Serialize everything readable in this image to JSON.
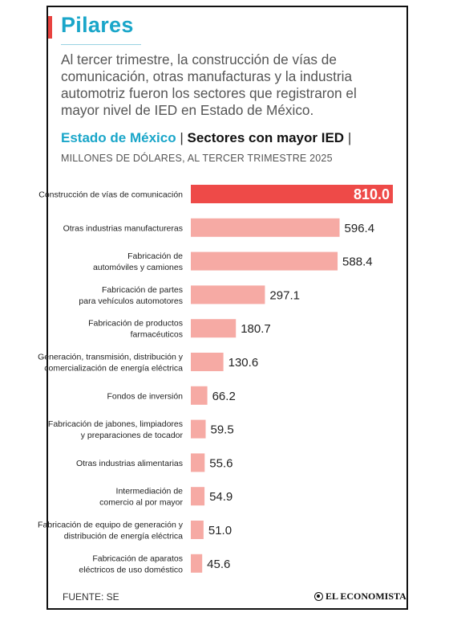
{
  "section": {
    "title": "Pilares"
  },
  "intro": "Al tercer trimestre, la construcción de vías de comunicación, otras manufacturas y la industria automotriz fueron los sectores que registraron el mayor nivel de IED en Estado de México.",
  "chart_heading": {
    "state": "Estado de México",
    "separator": "|",
    "title": "Sectores con mayor IED"
  },
  "chart_subtitle": "MILLONES DE DÓLARES, AL TERCER TRIMESTRE 2025",
  "colors": {
    "highlight": "#ee4a48",
    "bar": "#f6aaa4",
    "accent": "#1aa6c9"
  },
  "chart_data": {
    "type": "bar",
    "orientation": "horizontal",
    "title": "Sectores con mayor IED",
    "subtitle": "MILLONES DE DÓLARES, AL TERCER TRIMESTRE 2025",
    "xlim": [
      0,
      810
    ],
    "categories": [
      [
        "Construcción de vías de comunicación"
      ],
      [
        "Otras industrias manufactureras"
      ],
      [
        "Fabricación de",
        "automóviles y camiones"
      ],
      [
        "Fabricación de partes",
        "para vehículos automotores"
      ],
      [
        "Fabricación de productos",
        "farmacéuticos"
      ],
      [
        "Generación, transmisión, distribución y",
        "comercialización de energía eléctrica"
      ],
      [
        "Fondos de inversión"
      ],
      [
        "Fabricación de jabones, limpiadores",
        "y preparaciones de tocador"
      ],
      [
        "Otras industrias alimentarias"
      ],
      [
        "Intermediación de",
        "comercio al por mayor"
      ],
      [
        "Fabricación de equipo de generación y",
        "distribución de energía eléctrica"
      ],
      [
        "Fabricación de aparatos",
        "eléctricos de uso doméstico"
      ]
    ],
    "values": [
      810.0,
      596.4,
      588.4,
      297.1,
      180.7,
      130.6,
      66.2,
      59.5,
      55.6,
      54.9,
      51.0,
      45.6
    ],
    "value_labels": [
      "810.0",
      "596.4",
      "588.4",
      "297.1",
      "180.7",
      "130.6",
      "66.2",
      "59.5",
      "55.6",
      "54.9",
      "51.0",
      "45.6"
    ]
  },
  "footer": {
    "source": "FUENTE: SE",
    "brand": "EL ECONOMISTA"
  }
}
